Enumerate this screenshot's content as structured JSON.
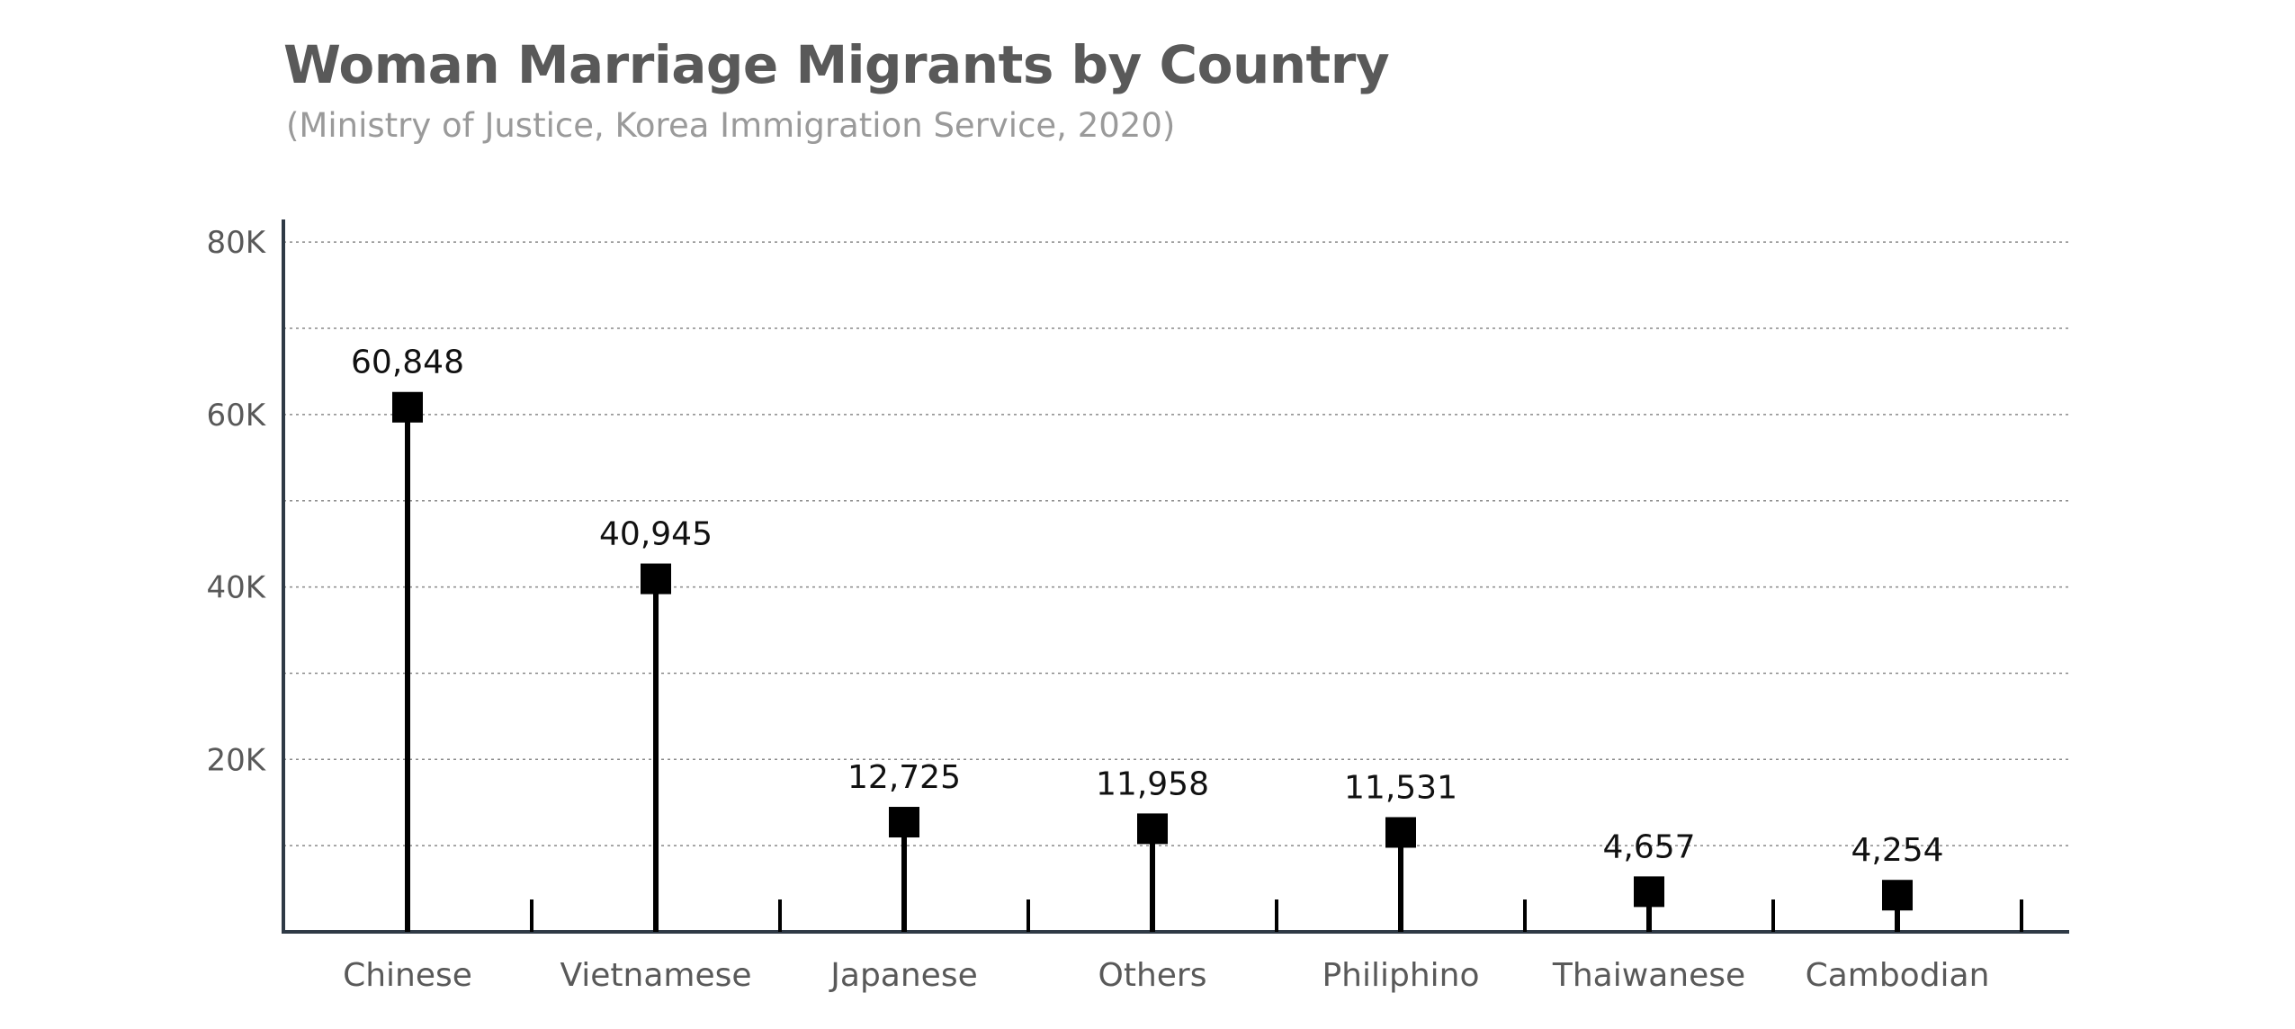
{
  "chart_data": {
    "type": "lollipop",
    "title": "Woman Marriage Migrants by Country",
    "subtitle": "(Ministry of Justice, Korea Immigration Service, 2020)",
    "categories": [
      "Chinese",
      "Vietnamese",
      "Japanese",
      "Others",
      "Philiphino",
      "Thaiwanese",
      "Cambodian"
    ],
    "values": [
      60848,
      40945,
      12725,
      11958,
      11531,
      4657,
      4254
    ],
    "value_labels": [
      "60,848",
      "40,945",
      "12,725",
      "11,958",
      "11,531",
      "4,657",
      "4,254"
    ],
    "yticks": [
      20000,
      40000,
      60000,
      80000
    ],
    "ytick_labels": [
      "20K",
      "40K",
      "60K",
      "80K"
    ],
    "ylim": [
      0,
      82000
    ],
    "grid": true,
    "colors": {
      "marker": "#000000",
      "axis": "#2f3a46",
      "grid": "#8a8a8a"
    }
  }
}
